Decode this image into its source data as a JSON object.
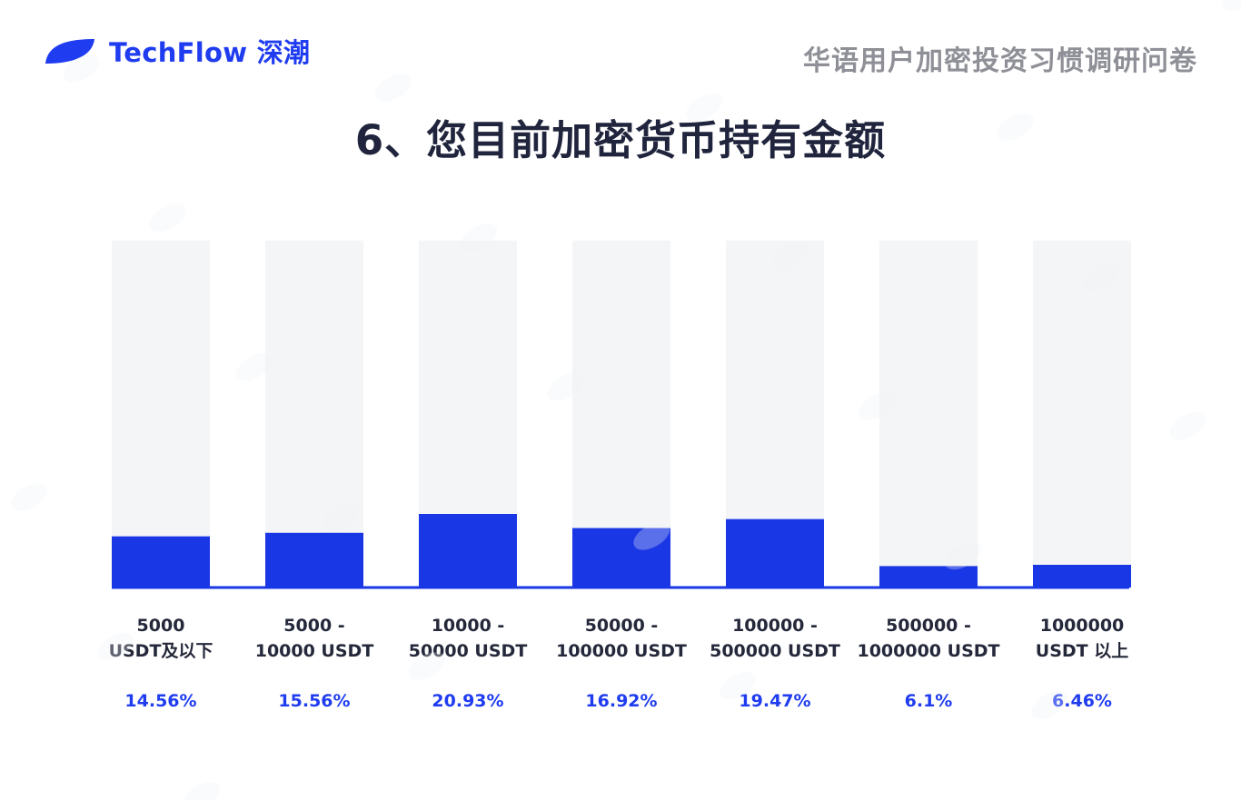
{
  "brand": {
    "name": "TechFlow 深潮",
    "color": "#1f3cf0"
  },
  "header": {
    "survey_title": "华语用户加密投资习惯调研问卷"
  },
  "chart_data": {
    "type": "bar",
    "title": "6、您目前加密货币持有金额",
    "categories": [
      [
        "5000",
        "USDT及以下"
      ],
      [
        "5000 -",
        "10000 USDT"
      ],
      [
        "10000 -",
        "50000 USDT"
      ],
      [
        "50000 -",
        "100000 USDT"
      ],
      [
        "100000 -",
        "500000 USDT"
      ],
      [
        "500000 -",
        "1000000 USDT"
      ],
      [
        "1000000",
        "USDT 以上"
      ]
    ],
    "values": [
      14.56,
      15.56,
      20.93,
      16.92,
      19.47,
      6.1,
      6.46
    ],
    "value_labels": [
      "14.56%",
      "15.56%",
      "20.93%",
      "16.92%",
      "19.47%",
      "6.1%",
      "6.46%"
    ],
    "ylim": [
      0,
      100
    ],
    "bar_color": "#1a37e6",
    "track_color": "#f4f5f7",
    "baseline_color": "#1a37e6",
    "grid": false,
    "legend": "none"
  }
}
